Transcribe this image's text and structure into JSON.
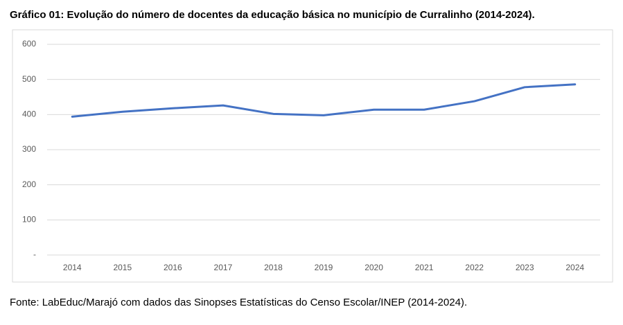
{
  "chart_data": {
    "type": "line",
    "title": "Gráfico 01: Evolução do número de docentes da educação básica no município de Curralinho (2014-2024).",
    "source": "Fonte: LabEduc/Marajó com dados das Sinopses Estatísticas do Censo Escolar/INEP (2014-2024).",
    "categories": [
      "2014",
      "2015",
      "2016",
      "2017",
      "2018",
      "2019",
      "2020",
      "2021",
      "2022",
      "2023",
      "2024"
    ],
    "values": [
      394,
      408,
      418,
      426,
      402,
      398,
      414,
      414,
      438,
      478,
      486
    ],
    "color": "#4472c4",
    "ylim": [
      0,
      600
    ],
    "yticks": [
      {
        "value": 0,
        "label": "-"
      },
      100,
      200,
      300,
      400,
      500,
      600
    ],
    "grid": true
  }
}
